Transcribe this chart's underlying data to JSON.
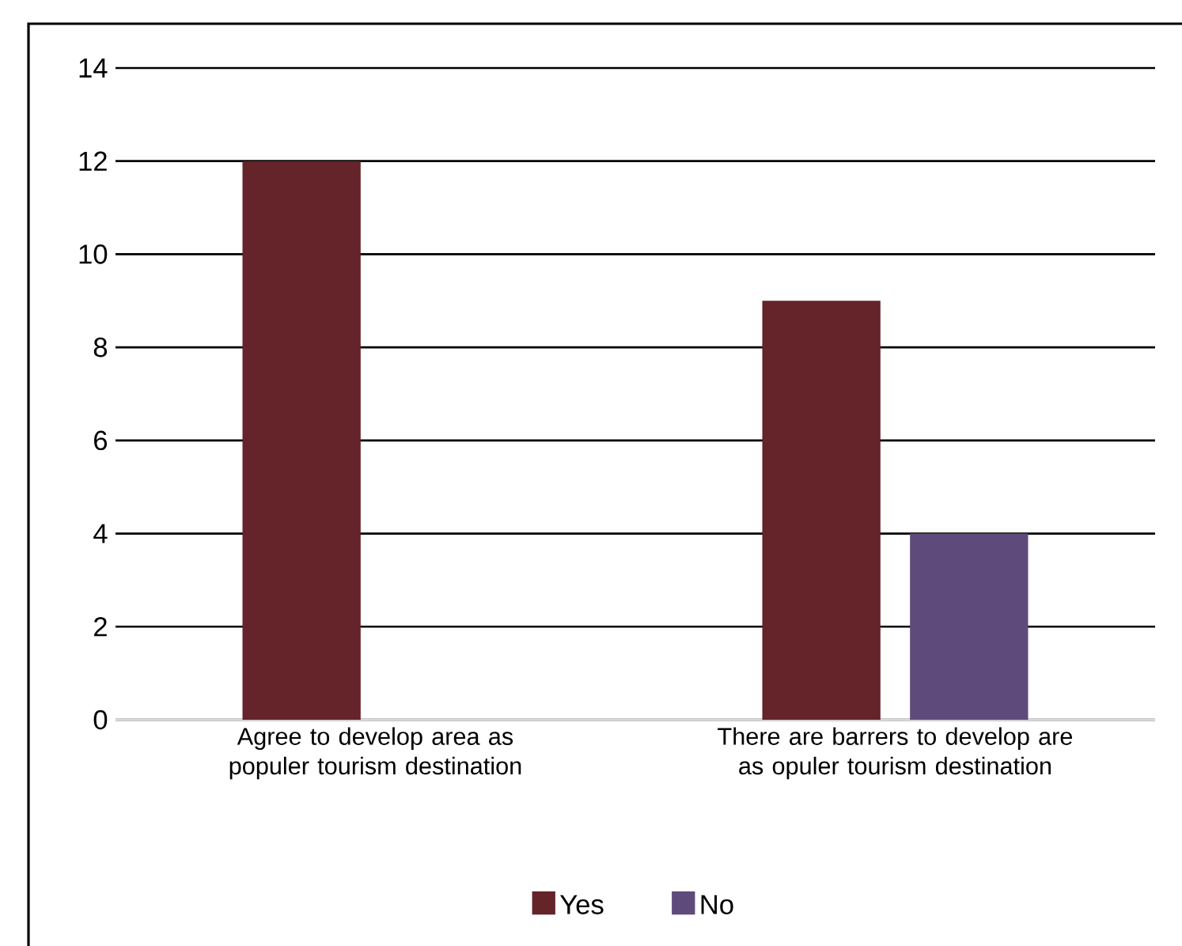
{
  "chart_data": {
    "type": "bar",
    "categories": [
      "Agree to develop area as populer tourism destination",
      "There are barrers to develop are as opuler tourism destination"
    ],
    "series": [
      {
        "name": "Yes",
        "color": "#65232a",
        "values": [
          12,
          9
        ]
      },
      {
        "name": "No",
        "color": "#5f4b7b",
        "values": [
          0,
          4
        ]
      }
    ],
    "ylim": [
      0,
      14
    ],
    "yticks": [
      0,
      2,
      4,
      6,
      8,
      10,
      12,
      14
    ],
    "grid": "y",
    "legend": "bottom"
  }
}
